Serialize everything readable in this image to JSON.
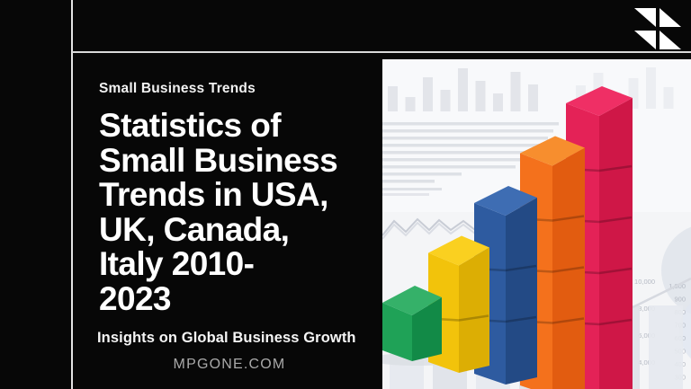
{
  "page": {
    "background_color": "#070707",
    "divider_color": "#e3e3e3"
  },
  "header": {
    "logo_color": "#ffffff"
  },
  "hero": {
    "kicker": "Small Business Trends",
    "title_lines": [
      "Statistics of",
      "Small Business",
      "Trends in USA,",
      "UK, Canada,",
      "Italy 2010-",
      "2023"
    ],
    "subtitle": "Insights on Global Business Growth",
    "website": "MPGONE.COM"
  },
  "photo": {
    "description": "wooden cube blocks stacked as a rising bar chart over faint financial charts",
    "background_numbers": {
      "left_column": [
        "10,000",
        "8,000",
        "6,000",
        "4,000"
      ],
      "right_column": [
        "1,000",
        "900",
        "800",
        "700",
        "600",
        "500",
        "400",
        "300"
      ]
    },
    "chart_data": {
      "type": "bar",
      "categories": [
        "green",
        "yellow",
        "blue",
        "orange",
        "pink"
      ],
      "values": [
        1,
        2,
        3,
        4,
        5
      ],
      "unit": "cubes",
      "colors": {
        "green": {
          "top": "#35b169",
          "left": "#1fa257",
          "right": "#128a47"
        },
        "yellow": {
          "top": "#fad020",
          "left": "#f2c30b",
          "right": "#dcae04"
        },
        "blue": {
          "top": "#3e6db3",
          "left": "#2e5ba0",
          "right": "#234a85"
        },
        "orange": {
          "top": "#f78e2e",
          "left": "#f4711c",
          "right": "#e25c10"
        },
        "pink": {
          "top": "#ef2f65",
          "left": "#e42257",
          "right": "#cf1747"
        }
      }
    }
  }
}
